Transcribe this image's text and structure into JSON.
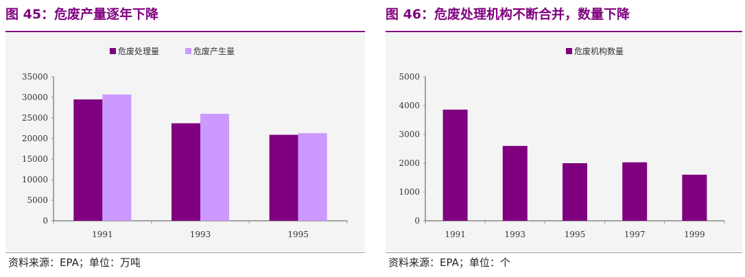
{
  "left": {
    "title": "图 45：危废产量逐年下降",
    "source": "资料来源：EPA；单位：万吨"
  },
  "right": {
    "title": "图 46：危废处理机构不断合并，数量下降",
    "source": "资料来源：EPA；单位：个"
  },
  "chart_data": [
    {
      "type": "bar",
      "categories": [
        "1991",
        "1993",
        "1995"
      ],
      "series": [
        {
          "name": "危废处理量",
          "color": "#7f007f",
          "values": [
            29500,
            23700,
            20900
          ]
        },
        {
          "name": "危废产生量",
          "color": "#cc99ff",
          "values": [
            30700,
            26000,
            21300
          ]
        }
      ],
      "ylim": [
        0,
        35000
      ],
      "yticks": [
        0,
        5000,
        10000,
        15000,
        20000,
        25000,
        30000,
        35000
      ],
      "legend": "top-center",
      "grid": false
    },
    {
      "type": "bar",
      "categories": [
        "1991",
        "1993",
        "1995",
        "1997",
        "1999"
      ],
      "series": [
        {
          "name": "危废机构数量",
          "color": "#7f007f",
          "values": [
            3860,
            2600,
            2000,
            2030,
            1600
          ]
        }
      ],
      "ylim": [
        0,
        5000
      ],
      "yticks": [
        0,
        1000,
        2000,
        3000,
        4000,
        5000
      ],
      "legend": "top-center",
      "grid": false
    }
  ]
}
